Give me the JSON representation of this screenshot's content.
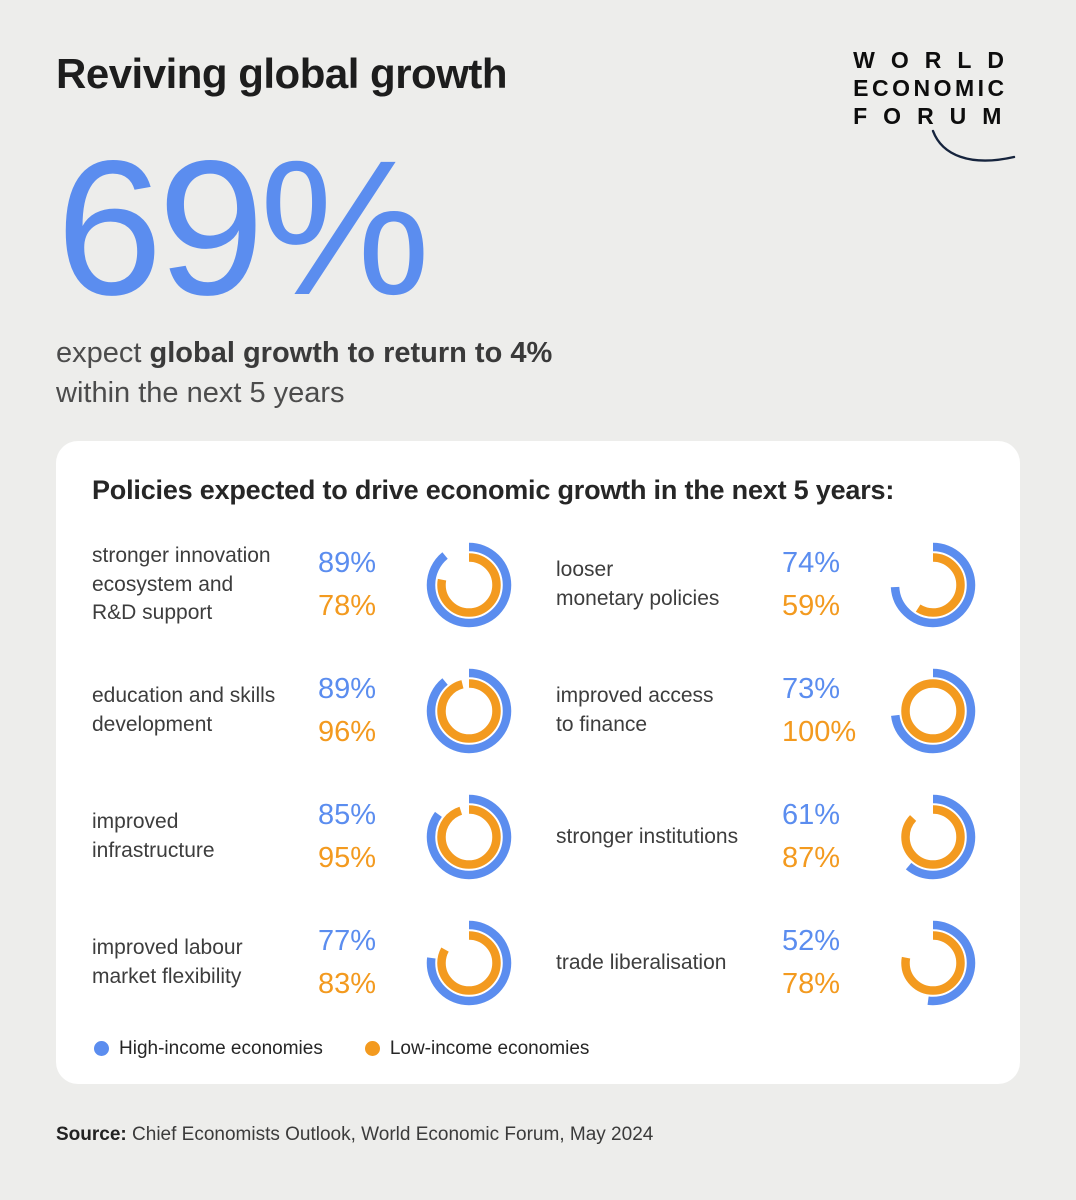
{
  "header": {
    "title": "Reviving global growth",
    "logo_lines": [
      "WORLD",
      "ECONOMIC",
      "FORUM"
    ]
  },
  "hero": {
    "stat": "69%",
    "line1_prefix": "expect ",
    "line1_bold": "global growth to return to 4%",
    "line2": "within the next 5 years"
  },
  "colors": {
    "blue": "#5B8DEF",
    "orange": "#F39A1F",
    "background": "#EDEDEB",
    "card": "#FFFFFF"
  },
  "chart_data": {
    "type": "donut",
    "title": "Policies expected to drive economic growth in the next 5 years:",
    "unit": "%",
    "legend_position": "bottom",
    "series_names": [
      "High-income economies",
      "Low-income economies"
    ],
    "series_colors": [
      "#5B8DEF",
      "#F39A1F"
    ],
    "items": [
      {
        "label": "stronger innovation\necosystem and\nR&D support",
        "high_income_pct": 89,
        "low_income_pct": 78
      },
      {
        "label": "looser\nmonetary policies",
        "high_income_pct": 74,
        "low_income_pct": 59
      },
      {
        "label": "education and skills\ndevelopment",
        "high_income_pct": 89,
        "low_income_pct": 96
      },
      {
        "label": "improved access\nto finance",
        "high_income_pct": 73,
        "low_income_pct": 100
      },
      {
        "label": "improved\ninfrastructure",
        "high_income_pct": 85,
        "low_income_pct": 95
      },
      {
        "label": "stronger institutions",
        "high_income_pct": 61,
        "low_income_pct": 87
      },
      {
        "label": "improved labour\nmarket flexibility",
        "high_income_pct": 77,
        "low_income_pct": 83
      },
      {
        "label": "trade liberalisation",
        "high_income_pct": 52,
        "low_income_pct": 78
      }
    ]
  },
  "legend": {
    "high": "High-income economies",
    "low": "Low-income economies"
  },
  "footer": {
    "source_label": "Source:",
    "source_text": "Chief Economists Outlook, World Economic Forum, May 2024"
  }
}
